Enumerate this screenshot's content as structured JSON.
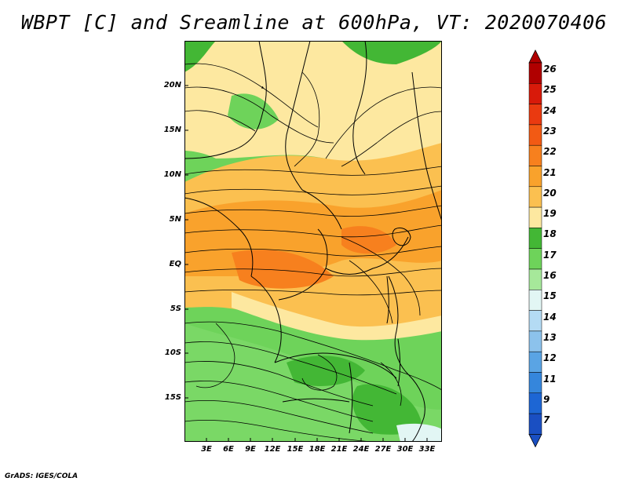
{
  "title": "WBPT [C] and Sreamline at 600hPa, VT: 2020070406",
  "credit": "GrADS: IGES/COLA",
  "map": {
    "lat_ticks": [
      "20N",
      "15N",
      "10N",
      "5N",
      "EQ",
      "5S",
      "10S",
      "15S"
    ],
    "lat_values": [
      20,
      15,
      10,
      5,
      0,
      -5,
      -10,
      -15
    ],
    "lon_ticks": [
      "3E",
      "6E",
      "9E",
      "12E",
      "15E",
      "18E",
      "21E",
      "24E",
      "27E",
      "30E",
      "33E"
    ],
    "lon_values": [
      3,
      6,
      9,
      12,
      15,
      18,
      21,
      24,
      27,
      30,
      33
    ],
    "lon_range": [
      0,
      35
    ],
    "lat_range": [
      -20,
      25
    ]
  },
  "colorbar": {
    "labels": [
      "26",
      "25",
      "24",
      "23",
      "22",
      "21",
      "20",
      "19",
      "18",
      "17",
      "16",
      "15",
      "14",
      "13",
      "12",
      "11",
      "9",
      "7"
    ],
    "colors": [
      "#b00000",
      "#d81a0a",
      "#ea3a10",
      "#f25a14",
      "#f7801e",
      "#f9a22c",
      "#fbc050",
      "#fde8a0",
      "#43b735",
      "#6ed35a",
      "#a6e89a",
      "#e2f6f4",
      "#b4dbf4",
      "#8cc2ec",
      "#5aa4e4",
      "#3586dc",
      "#1d66d4",
      "#1a4fc2"
    ]
  }
}
